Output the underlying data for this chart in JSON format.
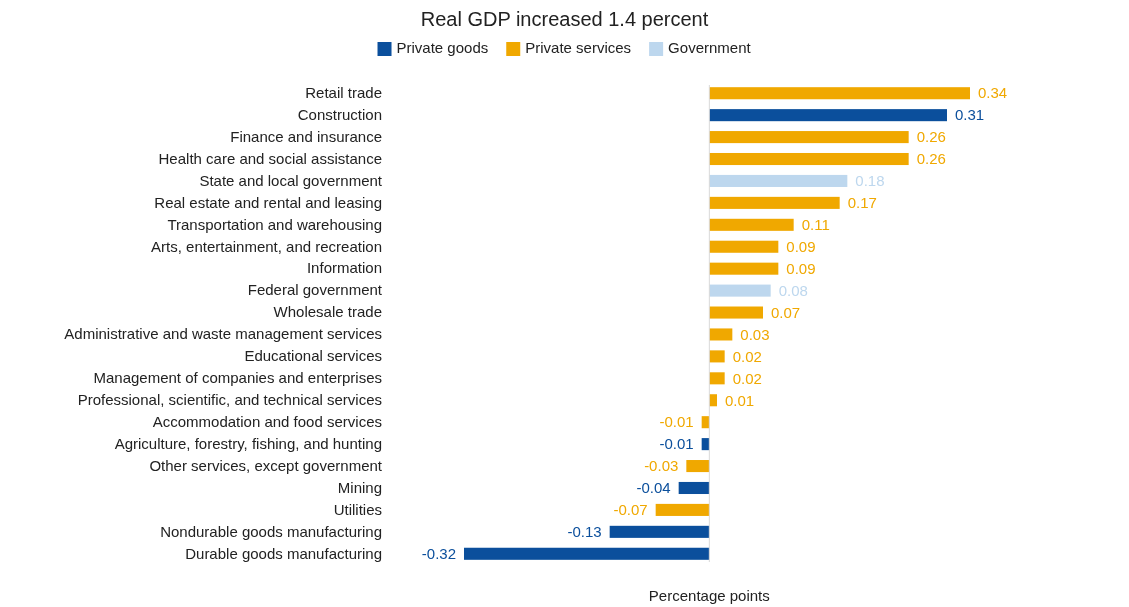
{
  "chart_data": {
    "type": "bar",
    "orientation": "horizontal",
    "stacked": true,
    "title": "Real GDP increased 1.4 percent",
    "xlabel": "Percentage points",
    "categories": [
      "Retail trade",
      "Construction",
      "Finance and insurance",
      "Health care and social assistance",
      "State and local government",
      "Real estate and rental and leasing",
      "Transportation and warehousing",
      "Arts, entertainment, and recreation",
      "Information",
      "Federal government",
      "Wholesale trade",
      "Administrative and waste management services",
      "Educational services",
      "Management of companies and enterprises",
      "Professional, scientific, and technical services",
      "Accommodation and food services",
      "Agriculture, forestry, fishing, and hunting",
      "Other services, except government",
      "Mining",
      "Utilities",
      "Nondurable goods manufacturing",
      "Durable goods manufacturing"
    ],
    "series": [
      {
        "name": "Private goods",
        "color": "#0b4f9c",
        "values": [
          null,
          0.31,
          null,
          null,
          null,
          null,
          null,
          null,
          null,
          null,
          null,
          null,
          null,
          null,
          null,
          null,
          -0.01,
          null,
          -0.04,
          null,
          -0.13,
          -0.32
        ]
      },
      {
        "name": "Private services",
        "color": "#f0a800",
        "values": [
          0.34,
          null,
          0.26,
          0.26,
          null,
          0.17,
          0.11,
          0.09,
          0.09,
          null,
          0.07,
          0.03,
          0.02,
          0.02,
          0.01,
          -0.01,
          null,
          -0.03,
          null,
          -0.07,
          null,
          null
        ]
      },
      {
        "name": "Government",
        "color": "#bdd7ee",
        "values": [
          null,
          null,
          null,
          null,
          0.18,
          null,
          null,
          null,
          null,
          0.08,
          null,
          null,
          null,
          null,
          null,
          null,
          null,
          null,
          null,
          null,
          null,
          null
        ]
      }
    ],
    "data_labels": true,
    "legend": "top",
    "tick_labels": "y"
  }
}
